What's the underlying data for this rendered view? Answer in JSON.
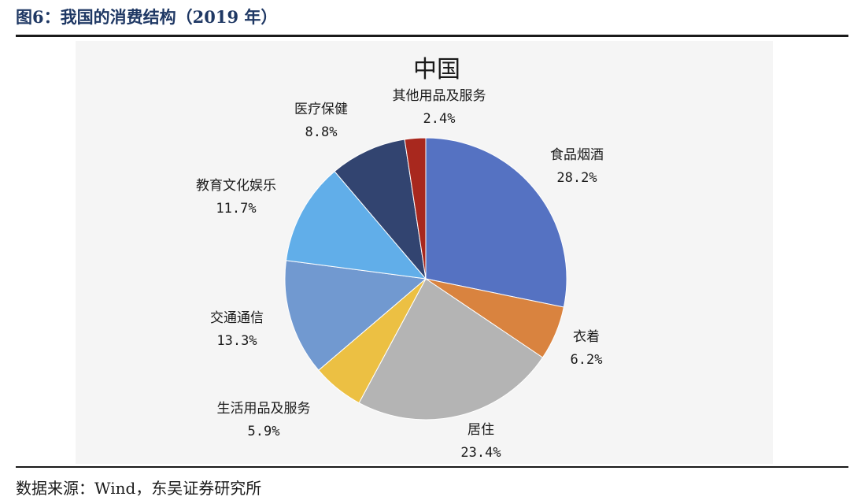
{
  "figure": {
    "title": "图6：我国的消费结构（2019 年）",
    "source": "数据来源：Wind，东吴证券研究所"
  },
  "chart_data": {
    "type": "pie",
    "title": "中国",
    "start_angle_deg": 90,
    "direction": "clockwise",
    "slices": [
      {
        "name": "食品烟酒",
        "value": 28.2,
        "label": "28.2%",
        "color": "#5572c2"
      },
      {
        "name": "衣着",
        "value": 6.2,
        "label": "6.2%",
        "color": "#d9833f"
      },
      {
        "name": "居住",
        "value": 23.4,
        "label": "23.4%",
        "color": "#b4b4b4"
      },
      {
        "name": "生活用品及服务",
        "value": 5.9,
        "label": "5.9%",
        "color": "#ecc043"
      },
      {
        "name": "交通通信",
        "value": 13.3,
        "label": "13.3%",
        "color": "#7199d0"
      },
      {
        "name": "教育文化娱乐",
        "value": 11.7,
        "label": "11.7%",
        "color": "#61aee9"
      },
      {
        "name": "医疗保健",
        "value": 8.8,
        "label": "8.8%",
        "color": "#324470"
      },
      {
        "name": "其他用品及服务",
        "value": 2.4,
        "label": "2.4%",
        "color": "#a8281e"
      }
    ]
  }
}
